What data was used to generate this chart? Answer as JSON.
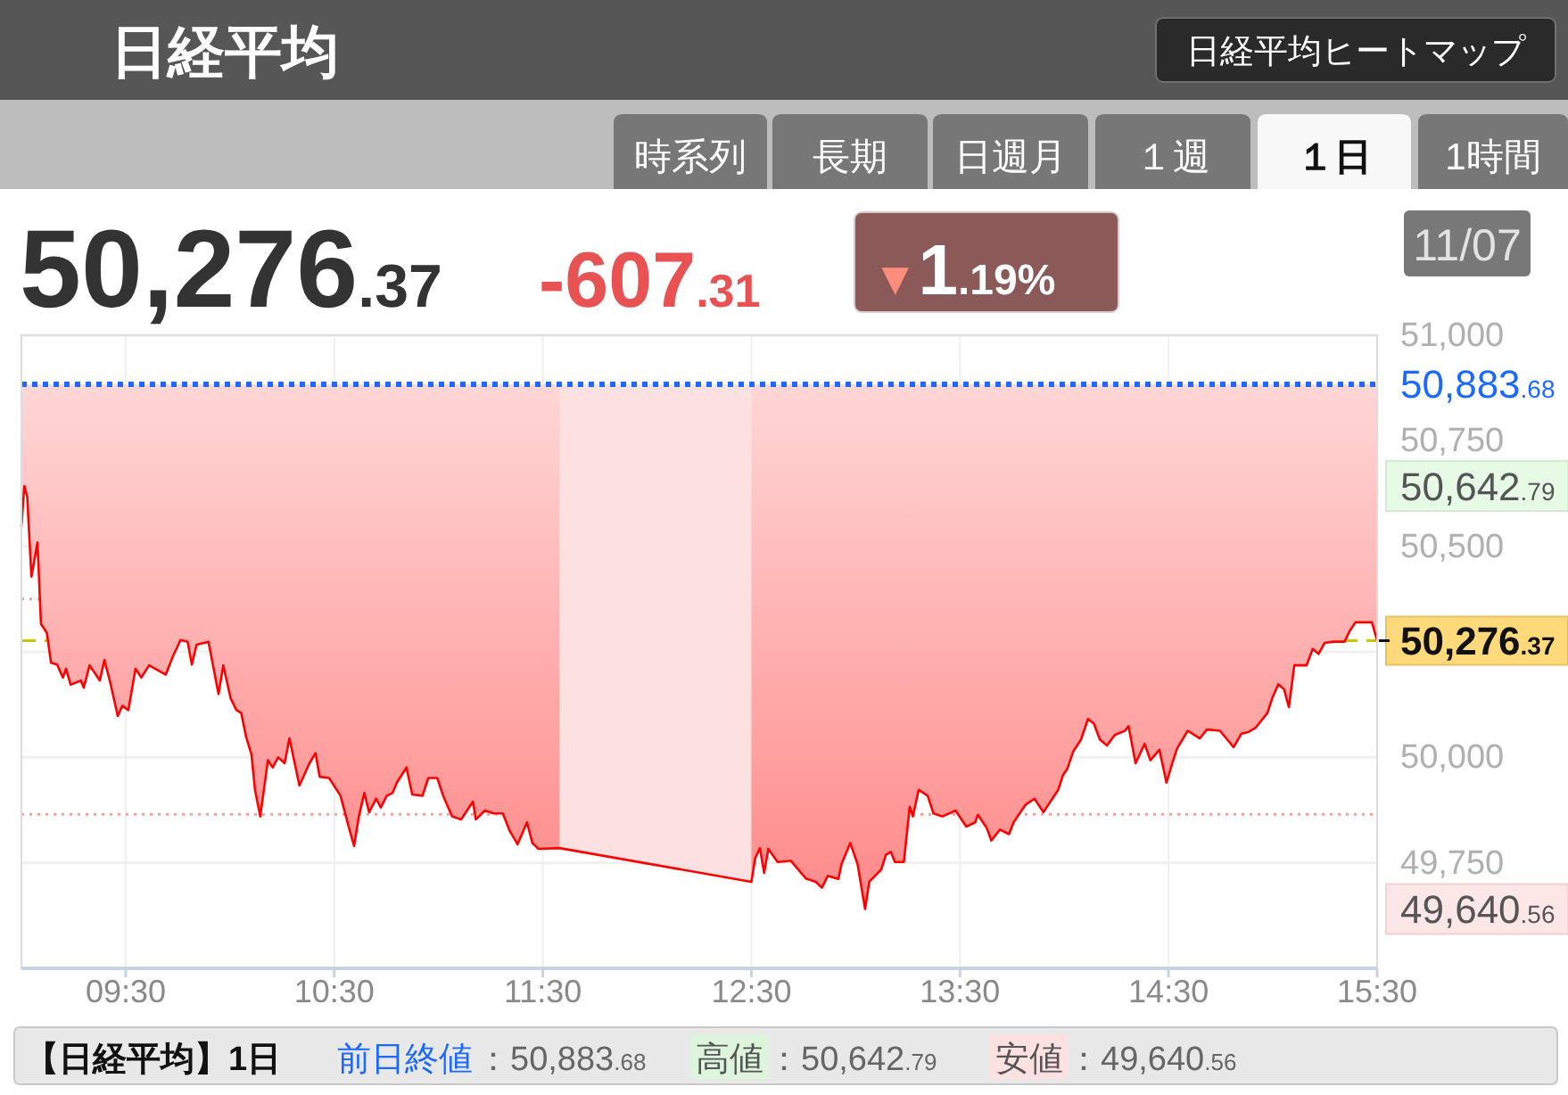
{
  "chart_data": {
    "type": "line",
    "title": "日経平均",
    "x": [
      9,
      9.014,
      9.028,
      9.048,
      9.077,
      9.094,
      9.122,
      9.142,
      9.171,
      9.199,
      9.214,
      9.236,
      9.285,
      9.299,
      9.327,
      9.376,
      9.398,
      9.427,
      9.462,
      9.484,
      9.513,
      9.547,
      9.575,
      9.612,
      9.692,
      9.726,
      9.763,
      9.797,
      9.817,
      9.84,
      9.897,
      9.945,
      9.968,
      10.003,
      10.031,
      10.054,
      10.077,
      10.103,
      10.12,
      10.145,
      10.182,
      10.205,
      10.231,
      10.262,
      10.285,
      10.333,
      10.381,
      10.41,
      10.43,
      10.475,
      10.53,
      10.567,
      10.595,
      10.618,
      10.644,
      10.667,
      10.701,
      10.723,
      10.752,
      10.78,
      10.8,
      10.846,
      10.874,
      10.923,
      10.951,
      10.994,
      11.022,
      11.065,
      11.108,
      11.165,
      11.179,
      11.222,
      11.265,
      11.308,
      11.342,
      11.379,
      11.424,
      11.45,
      11.479,
      11.58,
      12.5,
      12.518,
      12.541,
      12.561,
      12.581,
      12.626,
      12.689,
      12.761,
      12.809,
      12.838,
      12.866,
      12.917,
      12.932,
      12.974,
      13.009,
      13.045,
      13.065,
      13.122,
      13.145,
      13.168,
      13.188,
      13.231,
      13.259,
      13.274,
      13.302,
      13.345,
      13.373,
      13.415,
      13.479,
      13.53,
      13.573,
      13.586,
      13.629,
      13.65,
      13.692,
      13.735,
      13.757,
      13.815,
      13.857,
      13.9,
      13.971,
      13.994,
      14.014,
      14.043,
      14.08,
      14.114,
      14.142,
      14.171,
      14.205,
      14.242,
      14.291,
      14.308,
      14.342,
      14.385,
      14.413,
      14.456,
      14.49,
      14.518,
      14.541,
      14.592,
      14.65,
      14.684,
      14.746,
      14.812,
      14.849,
      14.883,
      14.917,
      14.974,
      14.997,
      15.026,
      15.054,
      15.077,
      15.103,
      15.162,
      15.191,
      15.219,
      15.248,
      15.291,
      15.344,
      15.368,
      15.396,
      15.475,
      15.5
    ],
    "series": [
      {
        "color": "#ff0000",
        "values": [
          50547,
          50642.79,
          50617,
          50428,
          50509,
          50316,
          50295,
          50224,
          50220,
          50189,
          50210,
          50172,
          50182,
          50165,
          50218,
          50182,
          50231,
          50175,
          50098,
          50122,
          50112,
          50210,
          50189,
          50218,
          50196,
          50239,
          50278,
          50274,
          50220,
          50267,
          50274,
          50150,
          50218,
          50140,
          50112,
          50105,
          50049,
          50007,
          49923,
          49860,
          49993,
          49976,
          50000,
          49986,
          50045,
          49933,
          49986,
          50010,
          49954,
          49951,
          49909,
          49839,
          49790,
          49860,
          49916,
          49870,
          49902,
          49881,
          49909,
          49916,
          49940,
          49976,
          49912,
          49909,
          49951,
          49951,
          49909,
          49860,
          49853,
          49895,
          49853,
          49874,
          49867,
          49867,
          49825,
          49794,
          49846,
          49797,
          49783,
          49785,
          49705,
          49761,
          49785,
          49726,
          49783,
          49752,
          49755,
          49713,
          49705,
          49691,
          49719,
          49712,
          49747,
          49797,
          49747,
          49640.56,
          49705,
          49734,
          49769,
          49776,
          49752,
          49752,
          49883,
          49860,
          49923,
          49909,
          49867,
          49860,
          49874,
          49836,
          49846,
          49864,
          49832,
          49803,
          49829,
          49818,
          49846,
          49888,
          49902,
          49870,
          49923,
          49958,
          49972,
          50014,
          50042,
          50091,
          50080,
          50042,
          50028,
          50053,
          50063,
          50074,
          49986,
          50032,
          49993,
          50018,
          49940,
          49986,
          50021,
          50063,
          50045,
          50066,
          50063,
          50024,
          50056,
          50060,
          50070,
          50105,
          50140,
          50173,
          50161,
          50119,
          50218,
          50218,
          50257,
          50245,
          50271,
          50274,
          50274,
          50299,
          50320,
          50320,
          50276.37
        ],
        "lower": [
          50547,
          50642.79,
          50617,
          50428,
          50509,
          50316,
          50295,
          50224,
          50220,
          50189,
          50210,
          50172,
          50182,
          50165,
          50218,
          50182,
          50231,
          50175,
          50098,
          50122,
          50112,
          50210,
          50189,
          50218,
          50196,
          50239,
          50278,
          50274,
          50220,
          50267,
          50274,
          50150,
          50218,
          50140,
          50112,
          50105,
          50049,
          50007,
          49923,
          49860,
          49993,
          49976,
          50000,
          49986,
          50045,
          49933,
          49986,
          50010,
          49954,
          49951,
          49909,
          49839,
          49790,
          49860,
          49916,
          49870,
          49902,
          49881,
          49909,
          49916,
          49940,
          49976,
          49912,
          49909,
          49951,
          49951,
          49909,
          49860,
          49853,
          49895,
          49853,
          49874,
          49867,
          49867,
          49825,
          49794,
          49846,
          49797,
          49783,
          49785,
          49705,
          49761,
          49785,
          49726,
          49783,
          49752,
          49755,
          49713,
          49705,
          49691,
          49719,
          49712,
          49747,
          49797,
          49747,
          49640.56,
          49705,
          49734,
          49769,
          49776,
          49752,
          49752,
          49883,
          49860,
          49923,
          49909,
          49867,
          49860,
          49874,
          49836,
          49846,
          49864,
          49832,
          49803,
          49829,
          49818,
          49846,
          49888,
          49902,
          49870,
          49923,
          49958,
          49972,
          50014,
          50042,
          50091,
          50080,
          50042,
          50028,
          50053,
          50063,
          50074,
          49986,
          50032,
          49993,
          50018,
          49940,
          49986,
          50021,
          50063,
          50045,
          50066,
          50063,
          50024,
          50056,
          50060,
          50070,
          50105,
          50140,
          50173,
          50161,
          50119,
          50218,
          50218,
          50257,
          50245,
          50271,
          50274,
          50274,
          50299,
          50320,
          50320,
          50276.37
        ],
        "upper": [
          50883.68,
          50883.68,
          50883.68,
          50883.68,
          50883.68,
          50883.68,
          50883.68,
          50883.68,
          50883.68,
          50883.68,
          50883.68,
          50883.68,
          50883.68,
          50883.68,
          50883.68,
          50883.68,
          50883.68,
          50883.68,
          50883.68,
          50883.68,
          50883.68,
          50883.68,
          50883.68,
          50883.68,
          50883.68,
          50883.68,
          50883.68,
          50883.68,
          50883.68,
          50883.68,
          50883.68,
          50883.68,
          50883.68,
          50883.68,
          50883.68,
          50883.68,
          50883.68,
          50883.68,
          50883.68,
          50883.68,
          50883.68,
          50883.68,
          50883.68,
          50883.68,
          50883.68,
          50883.68,
          50883.68,
          50883.68,
          50883.68,
          50883.68,
          50883.68,
          50883.68,
          50883.68,
          50883.68,
          50883.68,
          50883.68,
          50883.68,
          50883.68,
          50883.68,
          50883.68,
          50883.68,
          50883.68,
          50883.68,
          50883.68,
          50883.68,
          50883.68,
          50883.68,
          50883.68,
          50883.68,
          50883.68,
          50883.68,
          50883.68,
          50883.68,
          50883.68,
          50883.68,
          50883.68,
          50883.68,
          50883.68,
          50883.68,
          50883.68,
          50883.68,
          50883.68,
          50883.68,
          50883.68,
          50883.68,
          50883.68,
          50883.68,
          50883.68,
          50883.68,
          50883.68,
          50883.68,
          50883.68,
          50883.68,
          50883.68,
          50883.68,
          50883.68,
          50883.68,
          50883.68,
          50883.68,
          50883.68,
          50883.68,
          50883.68,
          50883.68,
          50883.68,
          50883.68,
          50883.68,
          50883.68,
          50883.68,
          50883.68,
          50883.68,
          50883.68,
          50883.68,
          50883.68,
          50883.68,
          50883.68,
          50883.68,
          50883.68,
          50883.68,
          50883.68,
          50883.68,
          50883.68,
          50883.68,
          50883.68,
          50883.68,
          50883.68,
          50883.68,
          50883.68,
          50883.68,
          50883.68,
          50883.68,
          50883.68,
          50883.68,
          50883.68,
          50883.68,
          50883.68,
          50883.68,
          50883.68,
          50883.68,
          50883.68,
          50883.68,
          50883.68,
          50883.68,
          50883.68,
          50883.68,
          50883.68,
          50883.68,
          50883.68,
          50883.68,
          50883.68,
          50883.68,
          50883.68,
          50883.68,
          50883.68,
          50883.68,
          50883.68,
          50883.68,
          50883.68,
          50883.68,
          50883.68,
          50883.68,
          50883.68,
          50883.68,
          50883.68
        ]
      }
    ],
    "xlim": [
      9,
      15.5
    ],
    "xticks": [
      {
        "value": 9.5,
        "label": "09:30"
      },
      {
        "value": 10.5,
        "label": "10:30"
      },
      {
        "value": 11.5,
        "label": "11:30"
      },
      {
        "value": 12.5,
        "label": "12:30"
      },
      {
        "value": 13.5,
        "label": "13:30"
      },
      {
        "value": 14.5,
        "label": "14:30"
      },
      {
        "value": 15.5,
        "label": "15:30"
      }
    ],
    "ylim": [
      49500,
      51000
    ],
    "yticks": [
      {
        "value": 49750,
        "label": "49,750"
      },
      {
        "value": 50000,
        "label": "50,000"
      },
      {
        "value": 50250,
        "label": null
      },
      {
        "value": 50500,
        "label": "50,500"
      },
      {
        "value": 50750,
        "label": "50,750"
      },
      {
        "value": 51000,
        "label": "51,000"
      }
    ],
    "grid": true,
    "ref_lines": [
      {
        "axis": "y",
        "value": 50883.68,
        "label": "50,883.68",
        "color": "#1a6aff",
        "line_style": "dotted"
      },
      {
        "axis": "y",
        "value": 50276.37,
        "label": "50,276.37",
        "color": "#c8c800",
        "line_style": "dashed"
      },
      {
        "axis": "y",
        "value": 50375,
        "color": "#ff9a9a",
        "line_style": "dotted"
      },
      {
        "axis": "y",
        "value": 49865,
        "color": "#ff9a9a",
        "line_style": "dotted"
      }
    ],
    "bands": [
      {
        "axis": "x",
        "from": 11.58,
        "to": 12.5,
        "color": "#fde0e0"
      }
    ],
    "annotations": [
      "日経平均ヒートマップ",
      "時系列",
      "長期",
      "日週月",
      "１週",
      "１日",
      "1時間",
      "50,276.37",
      "-607.31",
      "▼1.19%",
      "11/07",
      "50,642.79",
      "49,640.56",
      "【日経平均】1日",
      "前日終値：50,883.68",
      "高値：50,642.79",
      "安値：49,640.56"
    ]
  }
}
